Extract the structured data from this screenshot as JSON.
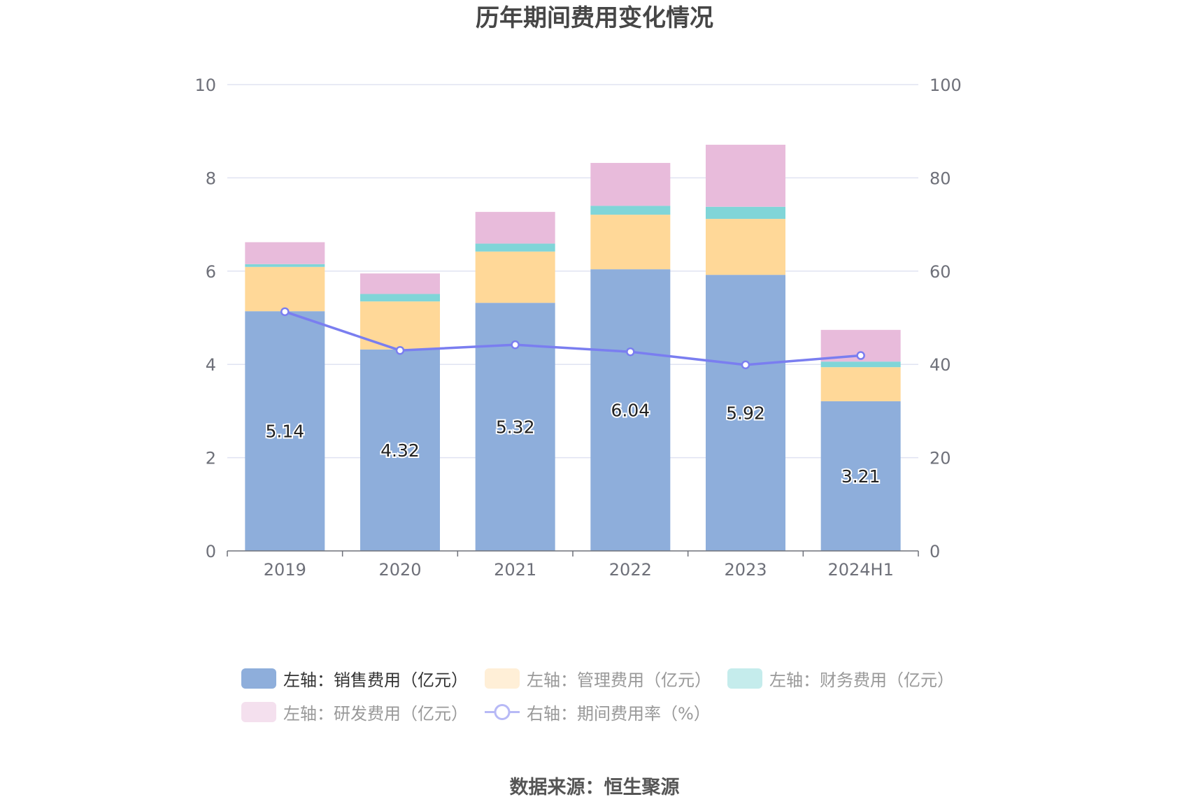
{
  "title": "历年期间费用变化情况",
  "source": "数据来源：恒生聚源",
  "chart_data": {
    "type": "bar",
    "stacked": true,
    "categories": [
      "2019",
      "2020",
      "2021",
      "2022",
      "2023",
      "2024H1"
    ],
    "ylim_left": [
      0,
      10
    ],
    "yticks_left": [
      "0",
      "2",
      "4",
      "6",
      "8",
      "10"
    ],
    "ylim_right": [
      0,
      100
    ],
    "yticks_right": [
      "0",
      "20",
      "40",
      "60",
      "80",
      "100"
    ],
    "grid": true,
    "legend_position": "bottom",
    "series": [
      {
        "name": "左轴：销售费用（亿元）",
        "axis": "left",
        "type": "bar",
        "color": "#8eaedb",
        "values": [
          5.14,
          4.32,
          5.32,
          6.04,
          5.92,
          3.21
        ],
        "labels": [
          "5.14",
          "4.32",
          "5.32",
          "6.04",
          "5.92",
          "3.21"
        ]
      },
      {
        "name": "左轴：管理费用（亿元）",
        "axis": "left",
        "type": "bar",
        "color": "#ffd898",
        "values": [
          0.95,
          1.03,
          1.1,
          1.17,
          1.2,
          0.73
        ]
      },
      {
        "name": "左轴：财务费用（亿元）",
        "axis": "left",
        "type": "bar",
        "color": "#80d5d8",
        "values": [
          0.06,
          0.16,
          0.17,
          0.19,
          0.26,
          0.12
        ]
      },
      {
        "name": "左轴：研发费用（亿元）",
        "axis": "left",
        "type": "bar",
        "color": "#e8bbdb",
        "values": [
          0.47,
          0.44,
          0.68,
          0.92,
          1.33,
          0.68
        ]
      },
      {
        "name": "右轴：期间费用率（%）",
        "axis": "right",
        "type": "line",
        "color": "#7a7ef0",
        "values": [
          51.3,
          43.0,
          44.2,
          42.7,
          39.9,
          41.9
        ]
      }
    ]
  },
  "legend": {
    "items": [
      {
        "label": "左轴：销售费用（亿元）",
        "color": "#8eaedb",
        "kind": "bar",
        "active": true
      },
      {
        "label": "左轴：管理费用（亿元）",
        "color": "#ffefd7",
        "kind": "bar",
        "active": false
      },
      {
        "label": "左轴：财务费用（亿元）",
        "color": "#c5ecec",
        "kind": "bar",
        "active": false
      },
      {
        "label": "左轴：研发费用（亿元）",
        "color": "#f4e0ee",
        "kind": "bar",
        "active": false
      },
      {
        "label": "右轴：期间费用率（%）",
        "color": "#b7b9f6",
        "kind": "line",
        "active": false
      }
    ]
  }
}
